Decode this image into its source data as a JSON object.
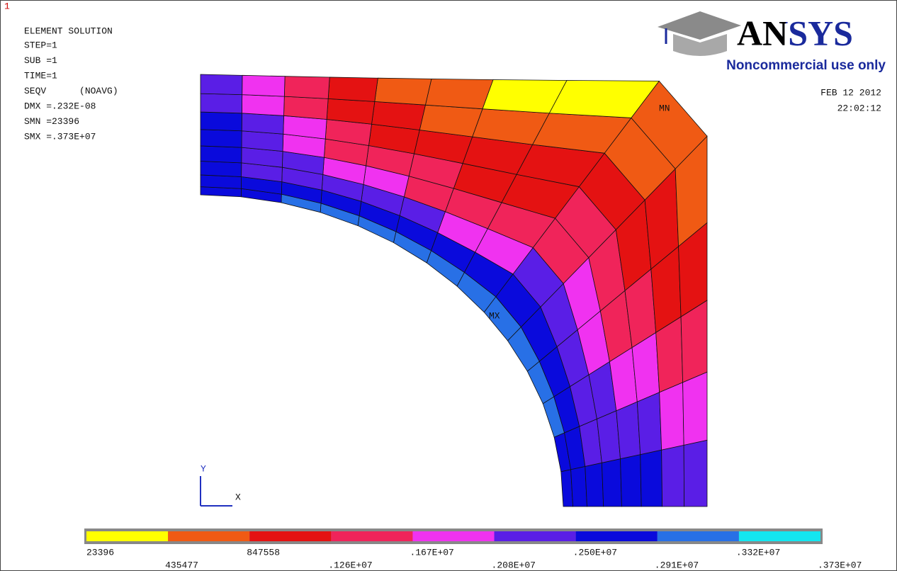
{
  "window": {
    "number": "1"
  },
  "info": {
    "title": "ELEMENT SOLUTION",
    "lines": [
      "STEP=1",
      "SUB =1",
      "TIME=1",
      "SEQV      (NOAVG)",
      "DMX =.232E-08",
      "SMN =23396",
      "SMX =.373E+07"
    ]
  },
  "logo": {
    "brand": "ANSYS",
    "note": "Noncommercial use only"
  },
  "timestamp": {
    "date": "FEB 12 2012",
    "time": "22:02:12"
  },
  "markers": {
    "min": "MN",
    "max": "MX"
  },
  "triad": {
    "y": "Y",
    "x": "X"
  },
  "legend": {
    "colors": [
      "#ffff00",
      "#f05a14",
      "#e41212",
      "#f0245a",
      "#f032f0",
      "#5a1ee6",
      "#0a0adc",
      "#2870e6",
      "#14e6f0"
    ],
    "labels": [
      "23396",
      "435477",
      "847558",
      ".126E+07",
      ".167E+07",
      ".208E+07",
      ".250E+07",
      ".291E+07",
      ".332E+07",
      ".373E+07"
    ]
  }
}
